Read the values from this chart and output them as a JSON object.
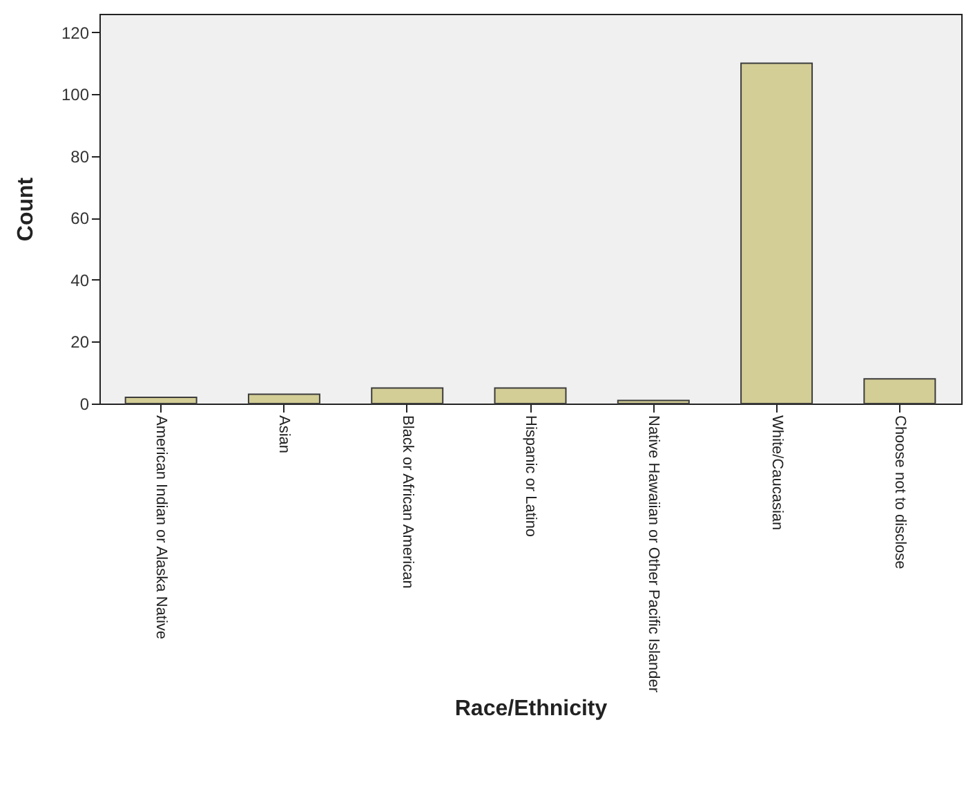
{
  "chart_data": {
    "type": "bar",
    "xlabel": "Race/Ethnicity",
    "ylabel": "Count",
    "categories": [
      "American Indian or Alaska Native",
      "Asian",
      "Black or African American",
      "Hispanic or Latino",
      "Native Hawaiian or Other Pacific Islander",
      "White/Caucasian",
      "Choose not to disclose"
    ],
    "values": [
      2,
      3,
      5,
      5,
      1,
      110,
      8
    ],
    "color": "#d3cd96",
    "ylim": [
      0,
      126
    ],
    "yticks": [
      0,
      20,
      40,
      60,
      80,
      100,
      120
    ],
    "grid": false
  }
}
